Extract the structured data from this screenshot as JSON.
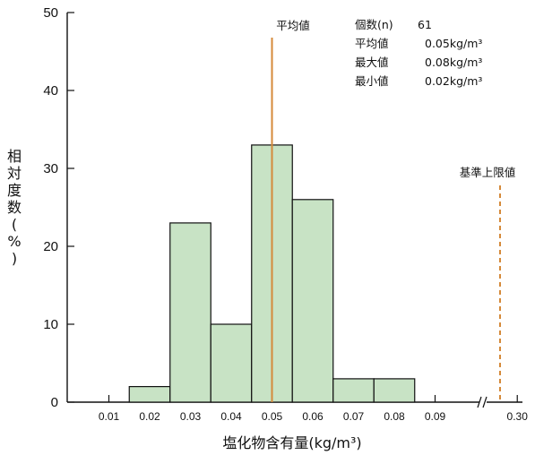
{
  "chart_data": {
    "type": "bar",
    "categories": [
      "0.02",
      "0.03",
      "0.04",
      "0.05",
      "0.06",
      "0.07",
      "0.08"
    ],
    "values": [
      2,
      23,
      10,
      33,
      26,
      3,
      3
    ],
    "x_ticks": [
      "0.01",
      "0.02",
      "0.03",
      "0.04",
      "0.05",
      "0.06",
      "0.07",
      "0.08",
      "0.09",
      "0.30"
    ],
    "y_ticks": [
      "0",
      "10",
      "20",
      "30",
      "40",
      "50"
    ],
    "ylim": [
      0,
      50
    ],
    "xlabel": "塩化物含有量(kg/m³)",
    "ylabel": "相対度数(%)",
    "bar_color": "#c8e3c5",
    "mean_line": {
      "value": 0.05,
      "label": "平均値",
      "color": "#d58a3a"
    },
    "limit_line": {
      "value": 0.3,
      "label": "基準上限値",
      "color": "#d58a3a"
    },
    "stats": [
      {
        "label": "個数(n)",
        "value": "61"
      },
      {
        "label": "平均値",
        "value": "0.05kg/m³"
      },
      {
        "label": "最大値",
        "value": "0.08kg/m³"
      },
      {
        "label": "最小値",
        "value": "0.02kg/m³"
      }
    ],
    "grid": false,
    "axis_break": true
  }
}
